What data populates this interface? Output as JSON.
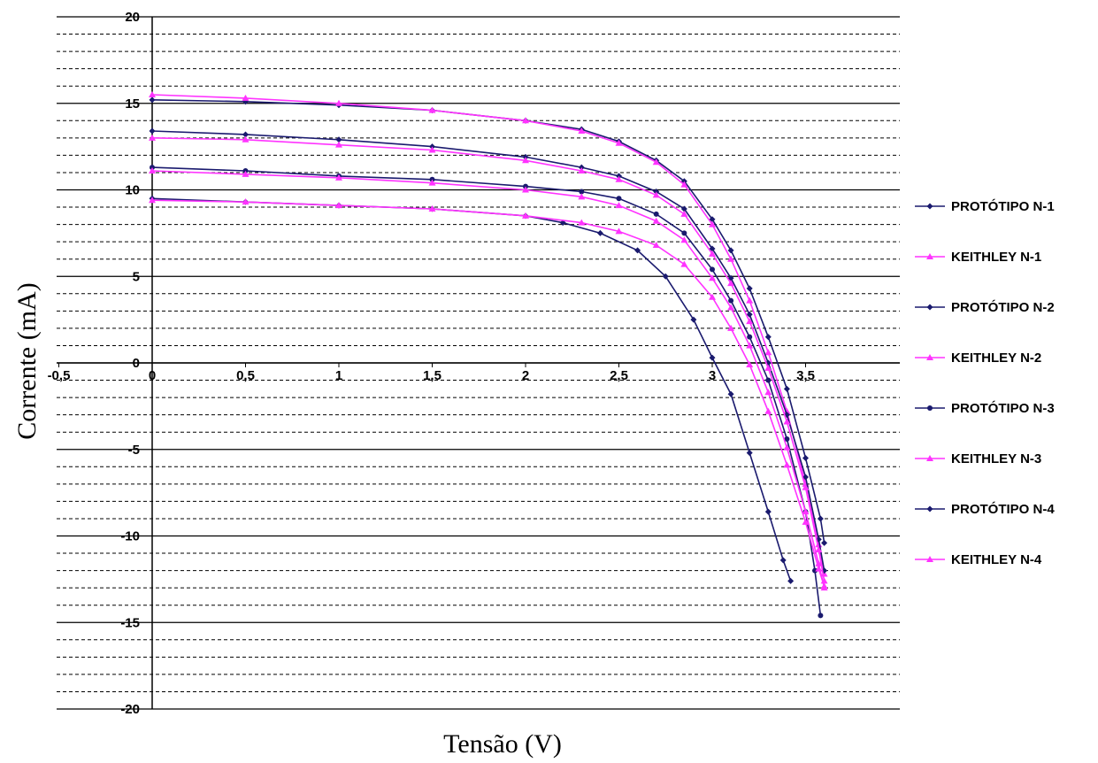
{
  "chart_data": {
    "type": "line",
    "title": "",
    "xlabel": "Tensão (V)",
    "ylabel": "Corrente (mA)",
    "xlim": [
      -0.5,
      4.0
    ],
    "ylim": [
      -20,
      20
    ],
    "x_ticks": [
      {
        "value": -0.5,
        "label": "-0,5"
      },
      {
        "value": 0,
        "label": "0"
      },
      {
        "value": 0.5,
        "label": "0,5"
      },
      {
        "value": 1,
        "label": "1"
      },
      {
        "value": 1.5,
        "label": "1,5"
      },
      {
        "value": 2,
        "label": "2"
      },
      {
        "value": 2.5,
        "label": "2,5"
      },
      {
        "value": 3,
        "label": "3"
      },
      {
        "value": 3.5,
        "label": "3,5"
      }
    ],
    "y_ticks": [
      {
        "value": 20,
        "label": "20"
      },
      {
        "value": 15,
        "label": "15"
      },
      {
        "value": 10,
        "label": "10"
      },
      {
        "value": 5,
        "label": "5"
      },
      {
        "value": 0,
        "label": "0"
      },
      {
        "value": -5,
        "label": "-5"
      },
      {
        "value": -10,
        "label": "-10"
      },
      {
        "value": -15,
        "label": "-15"
      },
      {
        "value": -20,
        "label": "-20"
      }
    ],
    "grid": {
      "major_solid": true,
      "minor_dashed": true,
      "minor_step": 1
    },
    "legend_position": "right",
    "series": [
      {
        "name": "PROTÓTIPO N-1",
        "color": "#1a1a6e",
        "marker": "diamond",
        "x": [
          0,
          0.5,
          1.0,
          1.5,
          2.0,
          2.3,
          2.5,
          2.7,
          2.85,
          3.0,
          3.1,
          3.2,
          3.3,
          3.4,
          3.5,
          3.58,
          3.6
        ],
        "y": [
          15.2,
          15.1,
          14.9,
          14.6,
          14.0,
          13.5,
          12.8,
          11.7,
          10.5,
          8.3,
          6.5,
          4.3,
          1.5,
          -1.5,
          -5.5,
          -9.0,
          -10.4
        ]
      },
      {
        "name": "KEITHLEY  N-1",
        "color": "#ff33ff",
        "marker": "triangle",
        "x": [
          0,
          0.5,
          1.0,
          1.5,
          2.0,
          2.3,
          2.5,
          2.7,
          2.85,
          3.0,
          3.1,
          3.2,
          3.3,
          3.4,
          3.5,
          3.57,
          3.6
        ],
        "y": [
          15.5,
          15.3,
          15.0,
          14.6,
          14.0,
          13.4,
          12.7,
          11.6,
          10.3,
          8.0,
          6.0,
          3.6,
          0.6,
          -2.8,
          -7.0,
          -10.5,
          -12.2
        ]
      },
      {
        "name": "PROTÓTIPO N-2",
        "color": "#1a1a6e",
        "marker": "diamond",
        "x": [
          0,
          0.5,
          1.0,
          1.5,
          2.0,
          2.3,
          2.5,
          2.7,
          2.85,
          3.0,
          3.1,
          3.2,
          3.3,
          3.4,
          3.5,
          3.57,
          3.6
        ],
        "y": [
          13.4,
          13.2,
          12.9,
          12.5,
          11.9,
          11.3,
          10.8,
          9.9,
          8.9,
          6.6,
          4.9,
          2.8,
          0.0,
          -3.0,
          -6.6,
          -10.2,
          -12.0
        ]
      },
      {
        "name": "KEITHLEY N-2",
        "color": "#ff33ff",
        "marker": "triangle",
        "x": [
          0,
          0.5,
          1.0,
          1.5,
          2.0,
          2.3,
          2.5,
          2.7,
          2.85,
          3.0,
          3.1,
          3.2,
          3.3,
          3.4,
          3.5,
          3.57,
          3.6
        ],
        "y": [
          13.0,
          12.9,
          12.6,
          12.3,
          11.7,
          11.1,
          10.6,
          9.7,
          8.6,
          6.3,
          4.6,
          2.4,
          -0.3,
          -3.4,
          -7.2,
          -10.8,
          -12.6
        ]
      },
      {
        "name": "PROTÓTIPO N-3",
        "color": "#1a1a6e",
        "marker": "circle",
        "x": [
          0,
          0.5,
          1.0,
          1.5,
          2.0,
          2.3,
          2.5,
          2.7,
          2.85,
          3.0,
          3.1,
          3.2,
          3.3,
          3.4,
          3.5,
          3.55,
          3.58
        ],
        "y": [
          11.3,
          11.1,
          10.8,
          10.6,
          10.2,
          9.9,
          9.5,
          8.6,
          7.5,
          5.4,
          3.6,
          1.5,
          -1.0,
          -4.4,
          -8.6,
          -12.0,
          -14.6
        ]
      },
      {
        "name": "KEITHLEY N-3",
        "color": "#ff33ff",
        "marker": "triangle",
        "x": [
          0,
          0.5,
          1.0,
          1.5,
          2.0,
          2.3,
          2.5,
          2.7,
          2.85,
          3.0,
          3.1,
          3.2,
          3.3,
          3.4,
          3.5,
          3.57,
          3.6
        ],
        "y": [
          11.1,
          10.9,
          10.7,
          10.4,
          10.0,
          9.6,
          9.1,
          8.2,
          7.1,
          4.9,
          3.2,
          1.0,
          -1.7,
          -4.9,
          -8.6,
          -11.6,
          -13.0
        ]
      },
      {
        "name": "PROTÓTIPO N-4",
        "color": "#1a1a6e",
        "marker": "diamond",
        "x": [
          0,
          0.5,
          1.0,
          1.5,
          2.0,
          2.2,
          2.4,
          2.6,
          2.75,
          2.9,
          3.0,
          3.1,
          3.2,
          3.3,
          3.38,
          3.42
        ],
        "y": [
          9.5,
          9.3,
          9.1,
          8.9,
          8.5,
          8.1,
          7.5,
          6.5,
          5.0,
          2.5,
          0.3,
          -1.8,
          -5.2,
          -8.6,
          -11.4,
          -12.6
        ]
      },
      {
        "name": "KEITHLEY N-4",
        "color": "#ff33ff",
        "marker": "triangle",
        "x": [
          0,
          0.5,
          1.0,
          1.5,
          2.0,
          2.3,
          2.5,
          2.7,
          2.85,
          3.0,
          3.1,
          3.2,
          3.3,
          3.4,
          3.5,
          3.57,
          3.6
        ],
        "y": [
          9.4,
          9.3,
          9.1,
          8.9,
          8.5,
          8.1,
          7.6,
          6.8,
          5.7,
          3.8,
          2.0,
          -0.1,
          -2.8,
          -5.9,
          -9.2,
          -11.9,
          -12.9
        ]
      }
    ]
  }
}
